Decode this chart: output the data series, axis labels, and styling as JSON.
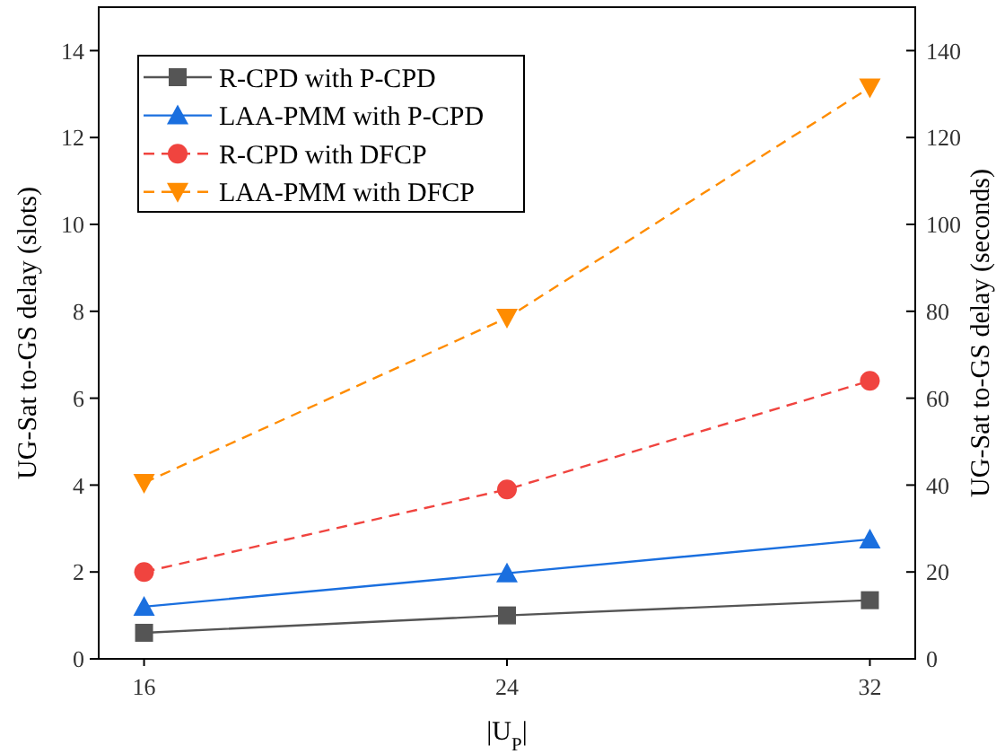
{
  "chart_data": {
    "type": "line",
    "xlabel": "|U$_{P}$|",
    "ylabel": "UG-Sat to-GS delay (slots)",
    "y2label": "UG-Sat to-GS delay (seconds)",
    "x": [
      16,
      24,
      32
    ],
    "xlim": [
      15,
      33
    ],
    "xticks": [
      16,
      24,
      32
    ],
    "ylim": [
      0,
      15
    ],
    "yticks": [
      0,
      2,
      4,
      6,
      8,
      10,
      12,
      14
    ],
    "y2lim": [
      0,
      150
    ],
    "y2ticks": [
      0,
      20,
      40,
      60,
      80,
      100,
      120,
      140
    ],
    "legend": "top left",
    "grid": false,
    "series": [
      {
        "name": "R-CPD with P-CPD",
        "color": "#555555",
        "values": [
          0.6,
          1.0,
          1.35
        ],
        "marker": "square",
        "line_style": "solid"
      },
      {
        "name": "LAA-PMM with P-CPD",
        "color": "#1a6fdf",
        "values": [
          1.2,
          1.97,
          2.75
        ],
        "marker": "triangle",
        "line_style": "solid"
      },
      {
        "name": "R-CPD with DFCP",
        "color": "#f0443f",
        "values": [
          2.0,
          3.9,
          6.4
        ],
        "marker": "circle",
        "line_style": "dashed"
      },
      {
        "name": "LAA-PMM with DFCP",
        "color": "#ff8c00",
        "values": [
          4.05,
          7.85,
          13.15
        ],
        "marker": "triangle-down",
        "line_style": "dashed"
      }
    ]
  }
}
